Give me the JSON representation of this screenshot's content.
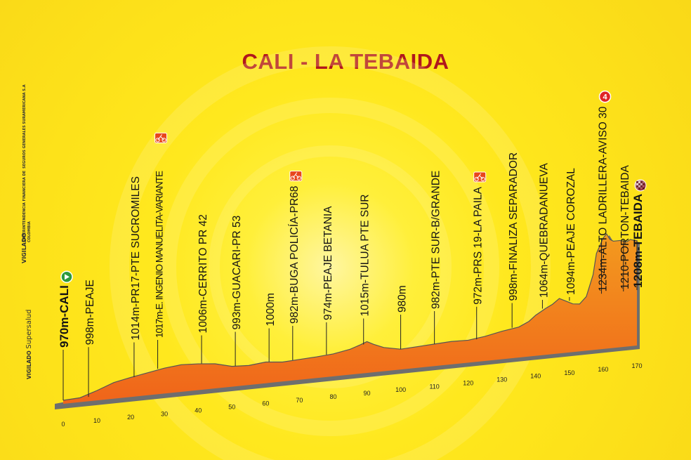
{
  "title": "CALI - LA TEBAIDA",
  "side_texts": {
    "vigilado_supersalud_a": "VIGILADO",
    "vigilado_supersalud_b": "Supersalud",
    "vigilado": "VIGILADO",
    "superfinanciera": "SUPERINTENDENCIA FINANCIERA DE COLOMBIA",
    "seguros": "SEGUROS GENERALES SURAMERICANA S.A"
  },
  "colors": {
    "title": "#b0171d",
    "profile_top": "#f08a1c",
    "profile_bottom": "#f36b12",
    "profile_edge": "#6e6e6e",
    "start_icon": "#2e9a3c",
    "sprint_icon": "#e8461b",
    "category_icon": "#e02424"
  },
  "chart_data": {
    "type": "area",
    "title": "CALI - LA TEBAIDA",
    "xlabel": "",
    "ylabel": "",
    "xlim": [
      0,
      170
    ],
    "ylim": [
      900,
      1300
    ],
    "x_ticks": [
      "0",
      "10",
      "20",
      "30",
      "40",
      "50",
      "60",
      "70",
      "80",
      "90",
      "100",
      "110",
      "120",
      "130",
      "140",
      "150",
      "160",
      "170"
    ],
    "profile": [
      [
        0,
        970
      ],
      [
        5,
        972
      ],
      [
        10,
        985
      ],
      [
        15,
        1000
      ],
      [
        20,
        1008
      ],
      [
        25,
        1015
      ],
      [
        30,
        1022
      ],
      [
        35,
        1026
      ],
      [
        40,
        1024
      ],
      [
        45,
        1020
      ],
      [
        50,
        1010
      ],
      [
        55,
        1008
      ],
      [
        60,
        1012
      ],
      [
        65,
        1008
      ],
      [
        70,
        1010
      ],
      [
        75,
        1012
      ],
      [
        80,
        1015
      ],
      [
        85,
        1022
      ],
      [
        88,
        1030
      ],
      [
        90,
        1036
      ],
      [
        92,
        1028
      ],
      [
        95,
        1018
      ],
      [
        100,
        1010
      ],
      [
        105,
        1012
      ],
      [
        110,
        1014
      ],
      [
        115,
        1016
      ],
      [
        120,
        1015
      ],
      [
        125,
        1020
      ],
      [
        130,
        1028
      ],
      [
        135,
        1034
      ],
      [
        138,
        1045
      ],
      [
        140,
        1058
      ],
      [
        143,
        1072
      ],
      [
        145,
        1080
      ],
      [
        147,
        1092
      ],
      [
        149,
        1084
      ],
      [
        151,
        1076
      ],
      [
        153,
        1074
      ],
      [
        155,
        1090
      ],
      [
        157,
        1140
      ],
      [
        158,
        1190
      ],
      [
        160,
        1225
      ],
      [
        161,
        1234
      ],
      [
        162,
        1220
      ],
      [
        163,
        1215
      ],
      [
        165,
        1215
      ],
      [
        167,
        1210
      ],
      [
        168,
        1215
      ],
      [
        170,
        1210
      ],
      [
        171,
        1212
      ]
    ],
    "annotations": [
      {
        "km": 0,
        "label": "970m-CALI",
        "bold": true,
        "icon": "start"
      },
      {
        "km": 7.5,
        "label": "998m-PEAJE"
      },
      {
        "km": 21,
        "label": "1014m-PR17-PTE SUCROMILES"
      },
      {
        "km": 28,
        "label": "1017m-E. INGENIO MANUELITA-VARIANTE",
        "condensed": true,
        "icon": "sprint"
      },
      {
        "km": 41,
        "label": "1006m-CERRITO PR 42"
      },
      {
        "km": 51,
        "label": "993m-GUACARI-PR 53"
      },
      {
        "km": 61,
        "label": "1000m"
      },
      {
        "km": 68,
        "label": "982m-BUGA POLICÍA-PR68",
        "icon": "sprint"
      },
      {
        "km": 78,
        "label": "974m-PEAJE BETANIA"
      },
      {
        "km": 89,
        "label": "1015m-TULUA PTE SUR"
      },
      {
        "km": 100,
        "label": "980m"
      },
      {
        "km": 110,
        "label": "982m-PTE SUR-B/GRANDE"
      },
      {
        "km": 122.5,
        "label": "972m-PRS 19-LA PAILA",
        "icon": "sprint"
      },
      {
        "km": 133,
        "label": "998m-FINALIZA SEPARADOR"
      },
      {
        "km": 142,
        "label": "1064m-QUEBRADANUEVA"
      },
      {
        "km": 150,
        "label": "1094m-PEAJE COROZAL"
      },
      {
        "km": 159.5,
        "label": "1234m-ALTO LADRILLERA-AVISO 30",
        "icon": "category",
        "icon_text": "4"
      },
      {
        "km": 166,
        "label": "1210-PORTON-TEBAIDA"
      },
      {
        "km": 170,
        "label": "1208m-TEBAIDA",
        "bold": true,
        "icon": "finish"
      }
    ]
  }
}
